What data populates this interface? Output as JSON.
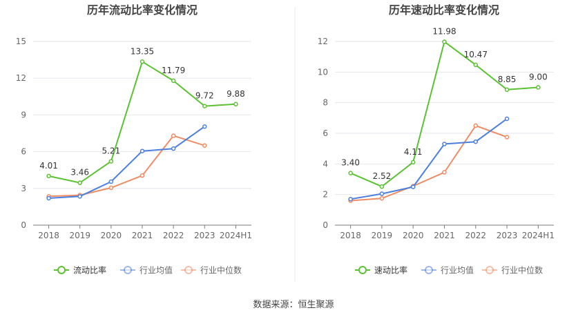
{
  "source": "数据来源：恒生聚源",
  "colors": {
    "main": "#5ac230",
    "avg": "#4a7fe0",
    "median": "#f08c64",
    "grid": "#e6e6ee",
    "axis": "#7a7a7a",
    "tick_text": "#666666",
    "label_text": "#333333",
    "title_text": "#444444",
    "divider": "#e8e8e8"
  },
  "chart_data": [
    {
      "type": "line",
      "title": "历年流动比率变化情况",
      "categories": [
        "2018",
        "2019",
        "2020",
        "2021",
        "2022",
        "2023",
        "2024H1"
      ],
      "yticks": [
        0,
        3,
        6,
        9,
        12,
        15
      ],
      "ylim": [
        0,
        15
      ],
      "grid": true,
      "legend_position": "bottom",
      "series": [
        {
          "name": "流动比率",
          "color": "#5ac230",
          "values": [
            4.01,
            3.46,
            5.21,
            13.35,
            11.79,
            9.72,
            9.88
          ],
          "labels": [
            "4.01",
            "3.46",
            "5.21",
            "13.35",
            "11.79",
            "9.72",
            "9.88"
          ]
        },
        {
          "name": "行业均值",
          "color": "#4a7fe0",
          "values": [
            2.2,
            2.35,
            3.55,
            6.05,
            6.25,
            8.05,
            null
          ]
        },
        {
          "name": "行业中位数",
          "color": "#f08c64",
          "values": [
            2.35,
            2.45,
            3.05,
            4.05,
            7.3,
            6.5,
            null
          ]
        }
      ]
    },
    {
      "type": "line",
      "title": "历年速动比率变化情况",
      "categories": [
        "2018",
        "2019",
        "2020",
        "2021",
        "2022",
        "2023",
        "2024H1"
      ],
      "yticks": [
        0,
        2,
        4,
        6,
        8,
        10,
        12
      ],
      "ylim": [
        0,
        12
      ],
      "grid": true,
      "legend_position": "bottom",
      "series": [
        {
          "name": "速动比率",
          "color": "#5ac230",
          "values": [
            3.4,
            2.52,
            4.11,
            11.98,
            10.47,
            8.85,
            9.0
          ],
          "labels": [
            "3.40",
            "2.52",
            "4.11",
            "11.98",
            "10.47",
            "8.85",
            "9.00"
          ]
        },
        {
          "name": "行业均值",
          "color": "#4a7fe0",
          "values": [
            1.7,
            2.05,
            2.5,
            5.3,
            5.45,
            6.95,
            null
          ]
        },
        {
          "name": "行业中位数",
          "color": "#f08c64",
          "values": [
            1.6,
            1.75,
            2.55,
            3.45,
            6.5,
            5.75,
            null
          ]
        }
      ]
    }
  ]
}
